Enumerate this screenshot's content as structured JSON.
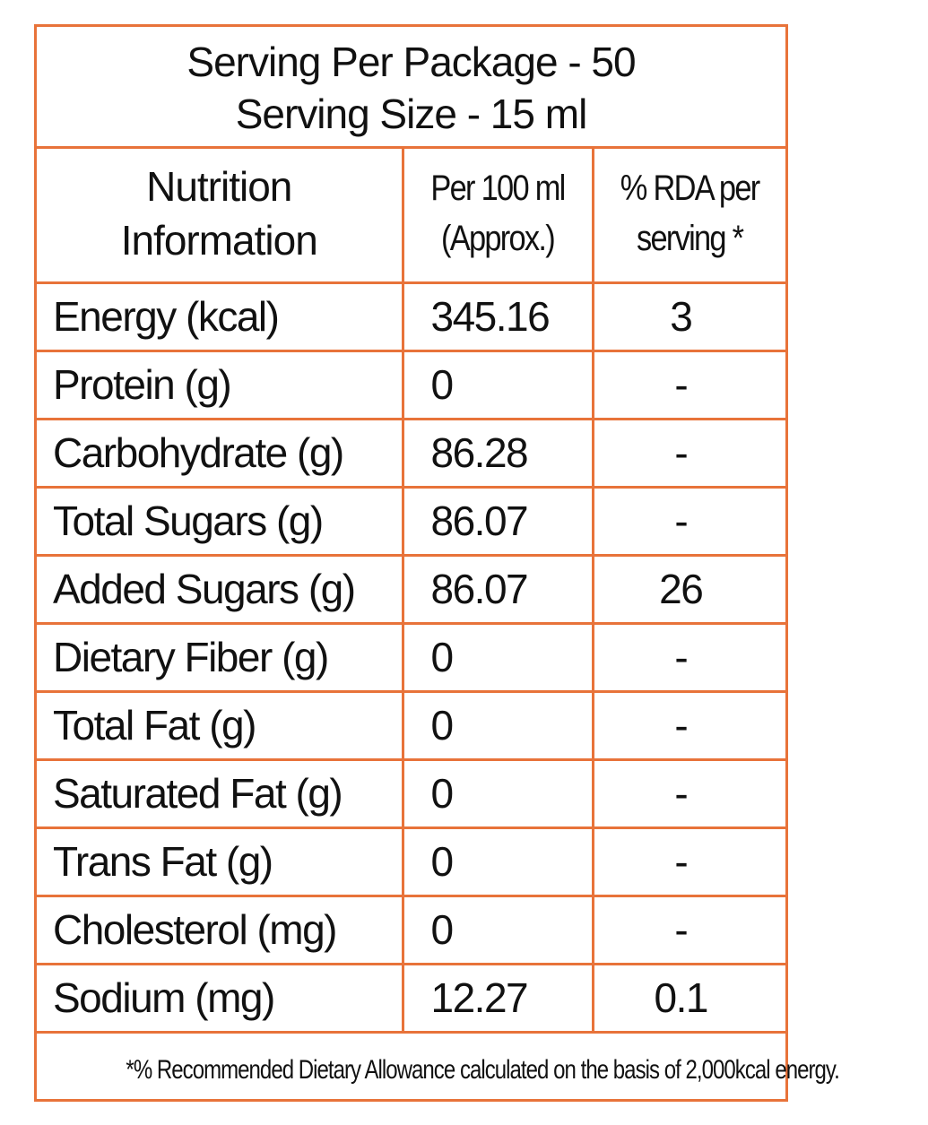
{
  "header": {
    "line1": "Serving Per Package - 50",
    "line2": "Serving Size - 15 ml"
  },
  "columns": {
    "nutrient_line1": "Nutrition",
    "nutrient_line2": "Information",
    "per100_line1": "Per 100 ml",
    "per100_line2": "(Approx.)",
    "rda_line1": "% RDA per",
    "rda_line2": "serving *"
  },
  "rows": [
    {
      "name": "Energy (kcal)",
      "per100": "345.16",
      "rda": "3"
    },
    {
      "name": "Protein (g)",
      "per100": "0",
      "rda": "-"
    },
    {
      "name": "Carbohydrate (g)",
      "per100": "86.28",
      "rda": "-"
    },
    {
      "name": "Total Sugars (g)",
      "per100": "86.07",
      "rda": "-"
    },
    {
      "name": "Added Sugars (g)",
      "per100": "86.07",
      "rda": "26"
    },
    {
      "name": "Dietary Fiber (g)",
      "per100": "0",
      "rda": "-"
    },
    {
      "name": "Total Fat (g)",
      "per100": "0",
      "rda": "-"
    },
    {
      "name": "Saturated Fat (g)",
      "per100": "0",
      "rda": "-"
    },
    {
      "name": "Trans Fat (g)",
      "per100": "0",
      "rda": "-"
    },
    {
      "name": "Cholesterol (mg)",
      "per100": "0",
      "rda": "-"
    },
    {
      "name": "Sodium (mg)",
      "per100": "12.27",
      "rda": "0.1"
    }
  ],
  "footnote": "*% Recommended Dietary Allowance calculated on the basis of 2,000kcal energy.",
  "colors": {
    "border": "#e8733a",
    "text": "#111111",
    "background": "#ffffff"
  }
}
